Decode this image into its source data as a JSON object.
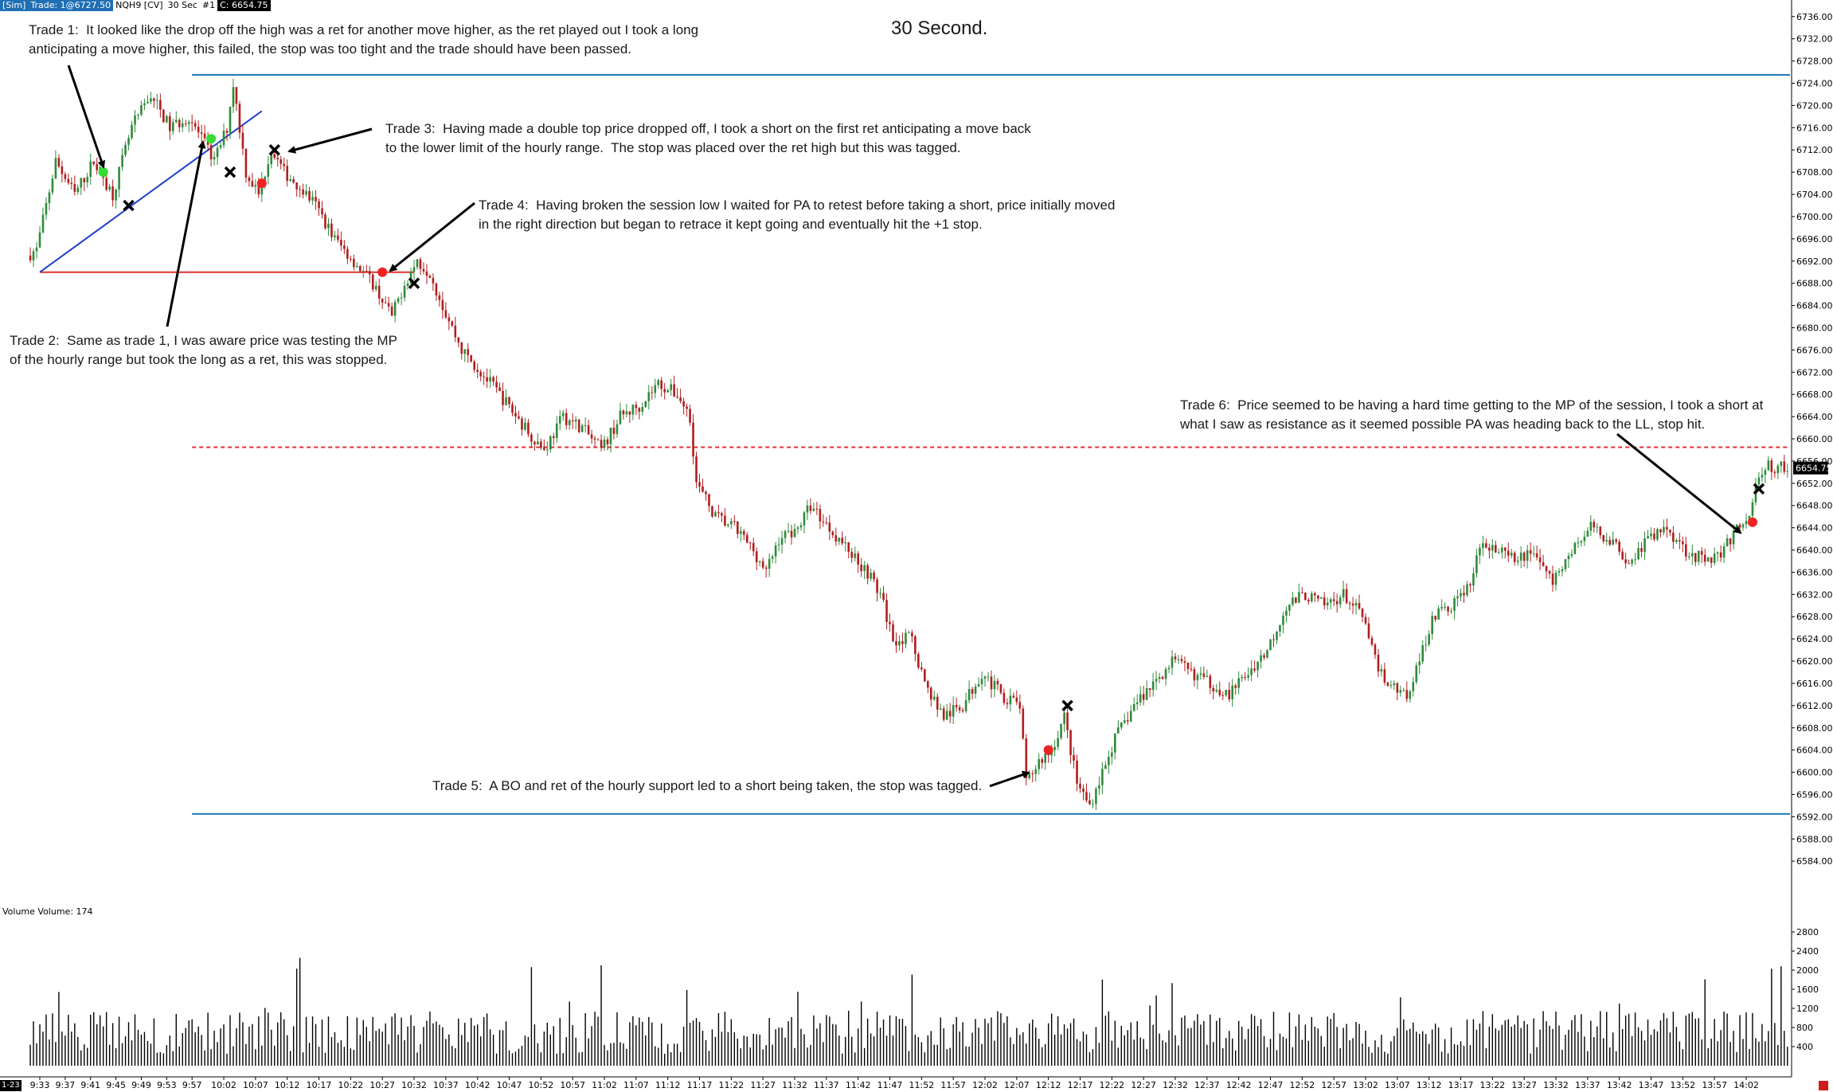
{
  "header": {
    "account": "[Sim]",
    "trade": "Trade: 1@6727.50",
    "instrument": "NQH9 [CV]",
    "period": "30 Sec",
    "index": "#1",
    "close": "C: 6654.75"
  },
  "title": "30 Second.",
  "volume_label": "Volume  Volume: 174",
  "date_tag": "1-23",
  "annotations": [
    {
      "id": "trade-1",
      "text": "Trade 1:  It looked like the drop off the high was a ret for another move higher, as the ret played out I took a long\nanticipating a move higher, this failed, the stop was too tight and the trade should have been passed."
    },
    {
      "id": "trade-2",
      "text": "Trade 2:  Same as trade 1, I was aware price was testing the MP\nof the hourly range but took the long as a ret, this was stopped."
    },
    {
      "id": "trade-3",
      "text": "Trade 3:  Having made a double top price dropped off, I took a short on the first ret anticipating a move back\nto the lower limit of the hourly range.  The stop was placed over the ret high but this was tagged."
    },
    {
      "id": "trade-4",
      "text": "Trade 4:  Having broken the session low I waited for PA to retest before taking a short, price initially moved\nin the right direction but began to retrace it kept going and eventually hit the +1 stop."
    },
    {
      "id": "trade-5",
      "text": "Trade 5:  A BO and ret of the hourly support led to a short being taken, the stop was tagged."
    },
    {
      "id": "trade-6",
      "text": "Trade 6:  Price seemed to be having a hard time getting to the MP of the session, I took a short at\nwhat I saw as resistance as it seemed possible PA was heading back to the LL, stop hit."
    }
  ],
  "colors": {
    "up_candle": "#2e8b3a",
    "down_candle": "#b01e1e",
    "volume_bar": "#000000",
    "hourly_range_line": "#1f78b4",
    "session_low_line": "#e03030",
    "midpoint_line": "#e03030",
    "trendline": "#1f3fd0",
    "entry_long": "#33dd33",
    "entry_short": "#ee2222"
  },
  "chart_data": {
    "type": "candlestick",
    "instrument": "NQH9",
    "timeframe": "30 Sec",
    "title": "30 Second.",
    "ylim": [
      6580.0,
      6738.0
    ],
    "y_ticks": [
      "6736.00",
      "6732.00",
      "6728.00",
      "6724.00",
      "6720.00",
      "6716.00",
      "6712.00",
      "6708.00",
      "6704.00",
      "6700.00",
      "6696.00",
      "6692.00",
      "6688.00",
      "6684.00",
      "6680.00",
      "6676.00",
      "6672.00",
      "6668.00",
      "6664.00",
      "6660.00",
      "6656.00",
      "6652.00",
      "6648.00",
      "6644.00",
      "6640.00",
      "6636.00",
      "6632.00",
      "6628.00",
      "6624.00",
      "6620.00",
      "6616.00",
      "6612.00",
      "6608.00",
      "6604.00",
      "6600.00",
      "6596.00",
      "6592.00",
      "6588.00",
      "6584.00"
    ],
    "last_price": "6654.75",
    "x_ticks": [
      "9:33",
      "9:37",
      "9:41",
      "9:45",
      "9:49",
      "9:53",
      "9:57",
      "10:02",
      "10:07",
      "10:12",
      "10:17",
      "10:22",
      "10:27",
      "10:32",
      "10:37",
      "10:42",
      "10:47",
      "10:52",
      "10:57",
      "11:02",
      "11:07",
      "11:12",
      "11:17",
      "11:22",
      "11:27",
      "11:32",
      "11:37",
      "11:42",
      "11:47",
      "11:52",
      "11:57",
      "12:02",
      "12:07",
      "12:12",
      "12:17",
      "12:22",
      "12:27",
      "12:32",
      "12:37",
      "12:42",
      "12:47",
      "12:52",
      "12:57",
      "13:02",
      "13:07",
      "13:12",
      "13:17",
      "13:22",
      "13:27",
      "13:32",
      "13:37",
      "13:42",
      "13:47",
      "13:52",
      "13:57",
      "14:02"
    ],
    "price_path": [
      [
        "9:30",
        6692
      ],
      [
        "9:33",
        6694
      ],
      [
        "9:36",
        6710
      ],
      [
        "9:39",
        6704
      ],
      [
        "9:42",
        6710
      ],
      [
        "9:45",
        6704
      ],
      [
        "9:48",
        6716
      ],
      [
        "9:51",
        6722
      ],
      [
        "9:54",
        6716
      ],
      [
        "9:57",
        6718
      ],
      [
        "9:59",
        6714
      ],
      [
        "10:01",
        6710
      ],
      [
        "10:03",
        6716
      ],
      [
        "10:04",
        6724
      ],
      [
        "10:05",
        6716
      ],
      [
        "10:06",
        6708
      ],
      [
        "10:08",
        6704
      ],
      [
        "10:10",
        6712
      ],
      [
        "10:12",
        6708
      ],
      [
        "10:14",
        6706
      ],
      [
        "10:17",
        6702
      ],
      [
        "10:20",
        6696
      ],
      [
        "10:23",
        6692
      ],
      [
        "10:26",
        6688
      ],
      [
        "10:27",
        6686
      ],
      [
        "10:29",
        6682
      ],
      [
        "10:31",
        6688
      ],
      [
        "10:33",
        6692
      ],
      [
        "10:35",
        6690
      ],
      [
        "10:37",
        6684
      ],
      [
        "10:40",
        6676
      ],
      [
        "10:43",
        6672
      ],
      [
        "10:46",
        6668
      ],
      [
        "10:50",
        6662
      ],
      [
        "10:53",
        6658
      ],
      [
        "10:56",
        6664
      ],
      [
        "10:59",
        6662
      ],
      [
        "11:02",
        6658
      ],
      [
        "11:05",
        6664
      ],
      [
        "11:08",
        6666
      ],
      [
        "11:11",
        6670
      ],
      [
        "11:14",
        6668
      ],
      [
        "11:16",
        6664
      ],
      [
        "11:17",
        6652
      ],
      [
        "11:20",
        6646
      ],
      [
        "11:23",
        6644
      ],
      [
        "11:26",
        6640
      ],
      [
        "11:28",
        6636
      ],
      [
        "11:30",
        6642
      ],
      [
        "11:33",
        6644
      ],
      [
        "11:35",
        6648
      ],
      [
        "11:38",
        6644
      ],
      [
        "11:41",
        6640
      ],
      [
        "11:44",
        6636
      ],
      [
        "11:46",
        6632
      ],
      [
        "11:48",
        6624
      ],
      [
        "11:51",
        6624
      ],
      [
        "11:53",
        6616
      ],
      [
        "11:56",
        6610
      ],
      [
        "11:59",
        6612
      ],
      [
        "12:02",
        6618
      ],
      [
        "12:05",
        6614
      ],
      [
        "12:08",
        6612
      ],
      [
        "12:09",
        6598
      ],
      [
        "12:11",
        6602
      ],
      [
        "12:13",
        6604
      ],
      [
        "12:15",
        6610
      ],
      [
        "12:17",
        6598
      ],
      [
        "12:19",
        6594
      ],
      [
        "12:21",
        6600
      ],
      [
        "12:23",
        6606
      ],
      [
        "12:26",
        6612
      ],
      [
        "12:29",
        6616
      ],
      [
        "12:32",
        6620
      ],
      [
        "12:35",
        6618
      ],
      [
        "12:38",
        6616
      ],
      [
        "12:41",
        6614
      ],
      [
        "12:44",
        6618
      ],
      [
        "12:47",
        6622
      ],
      [
        "12:50",
        6630
      ],
      [
        "12:53",
        6632
      ],
      [
        "12:56",
        6630
      ],
      [
        "12:59",
        6632
      ],
      [
        "13:02",
        6628
      ],
      [
        "13:04",
        6620
      ],
      [
        "13:06",
        6616
      ],
      [
        "13:09",
        6614
      ],
      [
        "13:11",
        6620
      ],
      [
        "13:13",
        6628
      ],
      [
        "13:16",
        6630
      ],
      [
        "13:19",
        6634
      ],
      [
        "13:21",
        6642
      ],
      [
        "13:23",
        6640
      ],
      [
        "13:26",
        6638
      ],
      [
        "13:29",
        6640
      ],
      [
        "13:32",
        6634
      ],
      [
        "13:35",
        6640
      ],
      [
        "13:38",
        6644
      ],
      [
        "13:41",
        6642
      ],
      [
        "13:44",
        6638
      ],
      [
        "13:47",
        6642
      ],
      [
        "13:50",
        6644
      ],
      [
        "13:53",
        6640
      ],
      [
        "13:56",
        6638
      ],
      [
        "13:59",
        6640
      ],
      [
        "14:01",
        6644
      ],
      [
        "14:03",
        6646
      ],
      [
        "14:04",
        6652
      ],
      [
        "14:06",
        6655
      ],
      [
        "14:08",
        6654.75
      ]
    ],
    "volume_scale": [
      0,
      2800
    ],
    "volume_ticks": [
      "2800",
      "2400",
      "2000",
      "1600",
      "1200",
      "800",
      "400"
    ],
    "last_volume": 174,
    "levels": [
      {
        "name": "hourly range high",
        "price": 6725.5,
        "style": "solid",
        "color": "#1f78b4",
        "from": "9:57",
        "to": "14:08"
      },
      {
        "name": "hourly range low",
        "price": 6592.5,
        "style": "solid",
        "color": "#1f78b4",
        "from": "9:57",
        "to": "14:08"
      },
      {
        "name": "session low",
        "price": 6690.0,
        "style": "solid",
        "color": "#e03030",
        "from": "9:33",
        "to": "10:32"
      },
      {
        "name": "session midpoint",
        "price": 6658.5,
        "style": "dashed",
        "color": "#e03030",
        "from": "9:57",
        "to": "14:08"
      }
    ],
    "trendline": {
      "from": [
        "9:33",
        6690
      ],
      "to": [
        "10:08",
        6719
      ]
    },
    "trades": [
      {
        "trade": 1,
        "side": "long",
        "entry": [
          "9:43",
          6708
        ],
        "stop": [
          "9:47",
          6702
        ]
      },
      {
        "trade": 2,
        "side": "long",
        "entry": [
          "10:00",
          6714
        ],
        "stop": [
          "10:03",
          6708
        ]
      },
      {
        "trade": 3,
        "side": "short",
        "entry": [
          "10:08",
          6706
        ],
        "stop": [
          "10:10",
          6712
        ]
      },
      {
        "trade": 4,
        "side": "short",
        "entry": [
          "10:27",
          6690
        ],
        "stop": [
          "10:32",
          6688
        ]
      },
      {
        "trade": 5,
        "side": "short",
        "entry": [
          "12:12",
          6604
        ],
        "stop": [
          "12:15",
          6612
        ]
      },
      {
        "trade": 6,
        "side": "short",
        "entry": [
          "14:03",
          6645
        ],
        "stop": [
          "14:04",
          6651
        ]
      }
    ]
  }
}
